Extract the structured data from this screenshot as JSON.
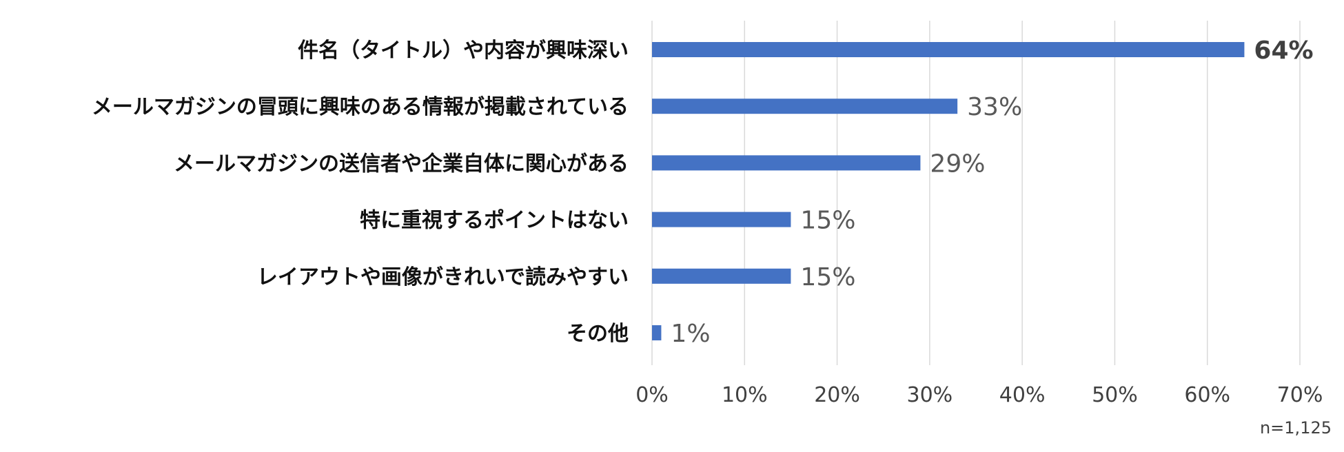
{
  "chart_data": {
    "type": "bar",
    "orientation": "horizontal",
    "categories": [
      "件名（タイトル）や内容が興味深い",
      "メールマガジンの冒頭に興味のある情報が掲載されている",
      "メールマガジンの送信者や企業自体に関心がある",
      "特に重視するポイントはない",
      "レイアウトや画像がきれいで読みやすい",
      "その他"
    ],
    "values": [
      64,
      33,
      29,
      15,
      15,
      1
    ],
    "value_labels": [
      "64%",
      "33%",
      "29%",
      "15%",
      "15%",
      "1%"
    ],
    "xlim": [
      0,
      70
    ],
    "x_ticks": [
      "0%",
      "10%",
      "20%",
      "30%",
      "40%",
      "50%",
      "60%",
      "70%"
    ],
    "grid": true,
    "bar_color": "#4472C4",
    "grid_color": "#D9D9D9",
    "note": "n=1,125"
  }
}
